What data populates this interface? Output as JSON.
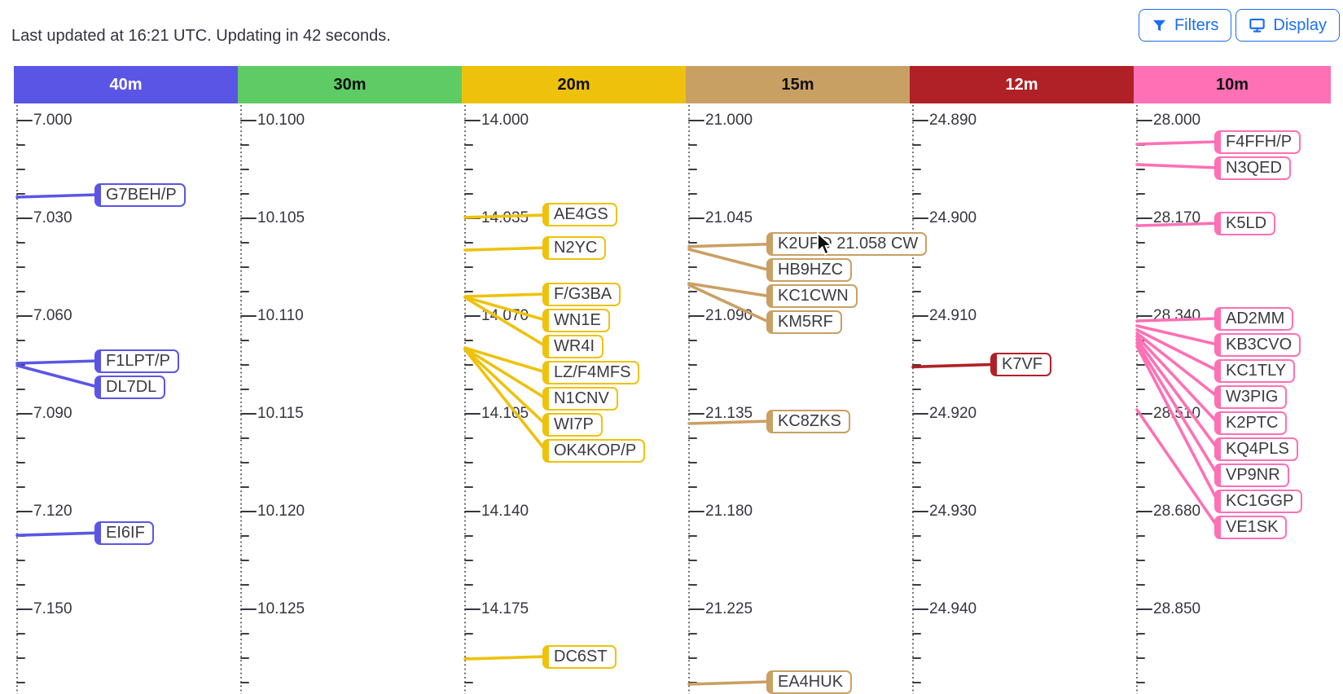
{
  "status_bar": {
    "text": "Last updated at 16:21 UTC. Updating in 42 seconds."
  },
  "toolbar": {
    "filters_label": "Filters",
    "display_label": "Display",
    "accent_color": "#1b6ef0"
  },
  "chart_data": {
    "type": "band-activity-frequency-ruler",
    "title": "",
    "legend_position": "none",
    "grid": "dotted-vertical-axes",
    "bands": [
      {
        "name": "40m",
        "color": "#5b55e6",
        "header_text_color": "#ffffff",
        "freq_start": 7.0,
        "freq_step": 0.03,
        "tick_labels": [
          "7.000",
          "7.030",
          "7.060",
          "7.090",
          "7.120",
          "7.150"
        ],
        "spots": [
          {
            "callsign": "G7BEH/P",
            "freq": 7.0235
          },
          {
            "callsign": "F1LPT/P",
            "freq": 7.0745
          },
          {
            "callsign": "DL7DL",
            "freq": 7.0752
          },
          {
            "callsign": "EI6IF",
            "freq": 7.1273
          }
        ]
      },
      {
        "name": "30m",
        "color": "#5ecb64",
        "header_text_color": "#111111",
        "freq_start": 10.1,
        "freq_step": 0.005,
        "tick_labels": [
          "10.100",
          "10.105",
          "10.110",
          "10.115",
          "10.120",
          "10.125"
        ],
        "spots": []
      },
      {
        "name": "20m",
        "color": "#eec20c",
        "header_text_color": "#111111",
        "freq_start": 14.0,
        "freq_step": 0.035,
        "tick_labels": [
          "14.000",
          "14.035",
          "14.070",
          "14.105",
          "14.140",
          "14.175"
        ],
        "spots": [
          {
            "callsign": "AE4GS",
            "freq": 14.0347
          },
          {
            "callsign": "N2YC",
            "freq": 14.0464
          },
          {
            "callsign": "F/G3BA",
            "freq": 14.063
          },
          {
            "callsign": "WN1E",
            "freq": 14.0632
          },
          {
            "callsign": "WR4I",
            "freq": 14.0634
          },
          {
            "callsign": "LZ/F4MFS",
            "freq": 14.0814
          },
          {
            "callsign": "N1CNV",
            "freq": 14.0816
          },
          {
            "callsign": "WI7P",
            "freq": 14.0818
          },
          {
            "callsign": "OK4KOP/P",
            "freq": 14.082
          },
          {
            "callsign": "DC6ST",
            "freq": 14.1928
          }
        ]
      },
      {
        "name": "15m",
        "color": "#c9a064",
        "header_text_color": "#111111",
        "freq_start": 21.0,
        "freq_step": 0.045,
        "tick_labels": [
          "21.000",
          "21.045",
          "21.090",
          "21.135",
          "21.180",
          "21.225"
        ],
        "spots": [
          {
            "callsign": "K2UPD",
            "freq": 21.058,
            "label": "K2UPD 21.058 CW",
            "hovered": true
          },
          {
            "callsign": "HB9HZC",
            "freq": 21.0593
          },
          {
            "callsign": "KC1CWN",
            "freq": 21.075
          },
          {
            "callsign": "KM5RF",
            "freq": 21.0757
          },
          {
            "callsign": "KC8ZKS",
            "freq": 21.1395
          },
          {
            "callsign": "EA4HUK",
            "freq": 21.2595
          }
        ]
      },
      {
        "name": "12m",
        "color": "#b02127",
        "header_text_color": "#ffffff",
        "freq_start": 24.89,
        "freq_step": 0.01,
        "tick_labels": [
          "24.890",
          "24.900",
          "24.910",
          "24.920",
          "24.930",
          "24.940"
        ],
        "spots": [
          {
            "callsign": "K7VF",
            "freq": 24.9152
          }
        ]
      },
      {
        "name": "10m",
        "color": "#ff70b5",
        "header_text_color": "#111111",
        "freq_start": 28.0,
        "freq_step": 0.17,
        "tick_labels": [
          "28.000",
          "28.170",
          "28.340",
          "28.510",
          "28.680",
          "28.850"
        ],
        "spots": [
          {
            "callsign": "F4FFH/P",
            "freq": 28.0411
          },
          {
            "callsign": "N3QED",
            "freq": 28.0765
          },
          {
            "callsign": "K5LD",
            "freq": 28.1828
          },
          {
            "callsign": "AD2MM",
            "freq": 28.3485
          },
          {
            "callsign": "KB3CVO",
            "freq": 28.357
          },
          {
            "callsign": "KC1TLY",
            "freq": 28.364
          },
          {
            "callsign": "W3PIG",
            "freq": 28.37
          },
          {
            "callsign": "K2PTC",
            "freq": 28.3754
          },
          {
            "callsign": "KQ4PLS",
            "freq": 28.381
          },
          {
            "callsign": "VP9NR",
            "freq": 28.3868
          },
          {
            "callsign": "KC1GGP",
            "freq": 28.3924
          },
          {
            "callsign": "VE1SK",
            "freq": 28.5029
          }
        ]
      }
    ]
  }
}
